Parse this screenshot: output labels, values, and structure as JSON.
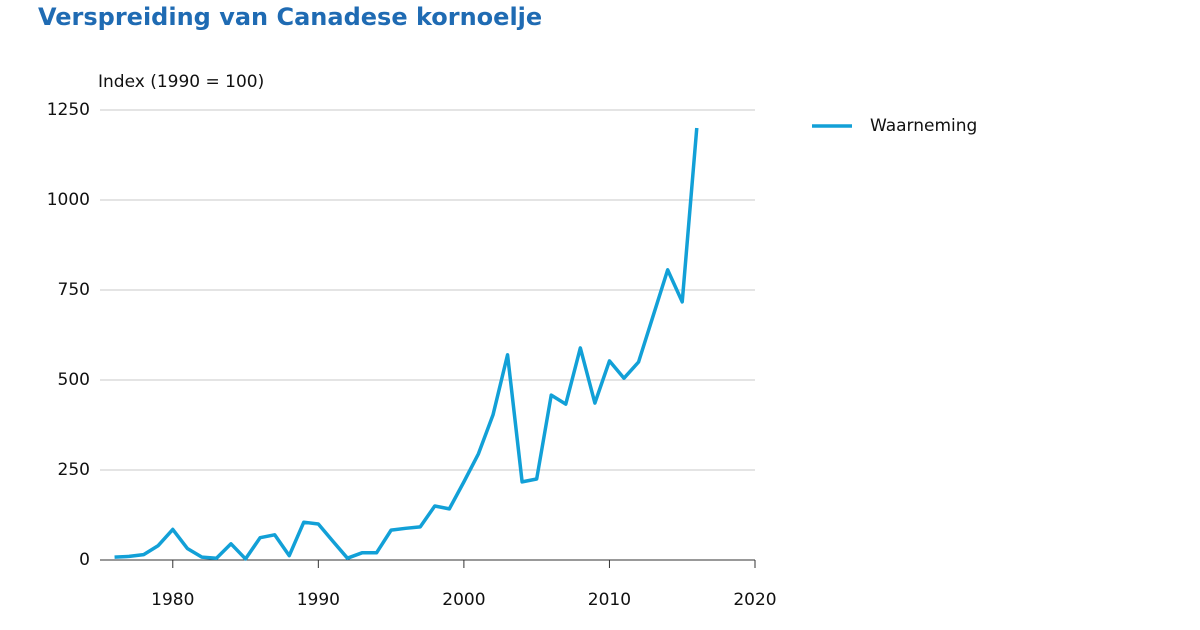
{
  "chart_data": {
    "type": "line",
    "title": "Verspreiding van Canadese kornoelje",
    "y_label": "Index (1990 = 100)",
    "x": [
      1976,
      1977,
      1978,
      1979,
      1980,
      1981,
      1982,
      1983,
      1984,
      1985,
      1986,
      1987,
      1988,
      1989,
      1990,
      1991,
      1992,
      1993,
      1994,
      1995,
      1996,
      1997,
      1998,
      1999,
      2000,
      2001,
      2002,
      2003,
      2004,
      2005,
      2006,
      2007,
      2008,
      2009,
      2010,
      2011,
      2012,
      2013,
      2014,
      2015,
      2016
    ],
    "series": [
      {
        "name": "Waarneming",
        "color": "#12a0d7",
        "values": [
          8,
          10,
          15,
          40,
          85,
          32,
          8,
          5,
          45,
          3,
          62,
          70,
          12,
          105,
          100,
          52,
          5,
          20,
          20,
          83,
          88,
          92,
          150,
          142,
          217,
          295,
          403,
          570,
          217,
          225,
          458,
          433,
          589,
          436,
          553,
          505,
          550,
          678,
          806,
          717,
          1200
        ]
      }
    ],
    "xlim": [
      1975,
      2020
    ],
    "xticks": [
      1980,
      1990,
      2000,
      2010,
      2020
    ],
    "ylim": [
      0,
      1250
    ],
    "yticks": [
      0,
      250,
      500,
      750,
      1000,
      1250
    ],
    "grid": true,
    "legend": "right"
  }
}
